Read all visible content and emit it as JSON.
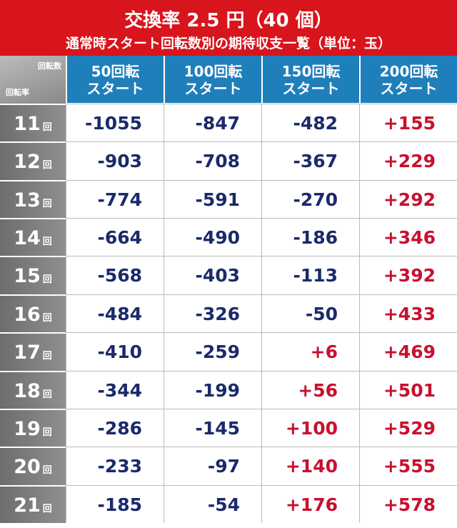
{
  "header": {
    "title": "交換率 2.5 円（40 個）",
    "subtitle": "通常時スタート回転数別の期待収支一覧（単位：玉）"
  },
  "table": {
    "corner_top": "回転数",
    "corner_bottom": "回転率",
    "columns": [
      [
        "50回転",
        "スタート"
      ],
      [
        "100回転",
        "スタート"
      ],
      [
        "150回転",
        "スタート"
      ],
      [
        "200回転",
        "スタート"
      ]
    ],
    "rows": [
      {
        "label": "11",
        "unit": "回",
        "cells": [
          "-1055",
          "-847",
          "-482",
          "+155"
        ]
      },
      {
        "label": "12",
        "unit": "回",
        "cells": [
          "-903",
          "-708",
          "-367",
          "+229"
        ]
      },
      {
        "label": "13",
        "unit": "回",
        "cells": [
          "-774",
          "-591",
          "-270",
          "+292"
        ]
      },
      {
        "label": "14",
        "unit": "回",
        "cells": [
          "-664",
          "-490",
          "-186",
          "+346"
        ]
      },
      {
        "label": "15",
        "unit": "回",
        "cells": [
          "-568",
          "-403",
          "-113",
          "+392"
        ]
      },
      {
        "label": "16",
        "unit": "回",
        "cells": [
          "-484",
          "-326",
          "-50",
          "+433"
        ]
      },
      {
        "label": "17",
        "unit": "回",
        "cells": [
          "-410",
          "-259",
          "+6",
          "+469"
        ]
      },
      {
        "label": "18",
        "unit": "回",
        "cells": [
          "-344",
          "-199",
          "+56",
          "+501"
        ]
      },
      {
        "label": "19",
        "unit": "回",
        "cells": [
          "-286",
          "-145",
          "+100",
          "+529"
        ]
      },
      {
        "label": "20",
        "unit": "回",
        "cells": [
          "-233",
          "-97",
          "+140",
          "+555"
        ]
      },
      {
        "label": "21",
        "unit": "回",
        "cells": [
          "-185",
          "-54",
          "+176",
          "+578"
        ]
      }
    ]
  }
}
